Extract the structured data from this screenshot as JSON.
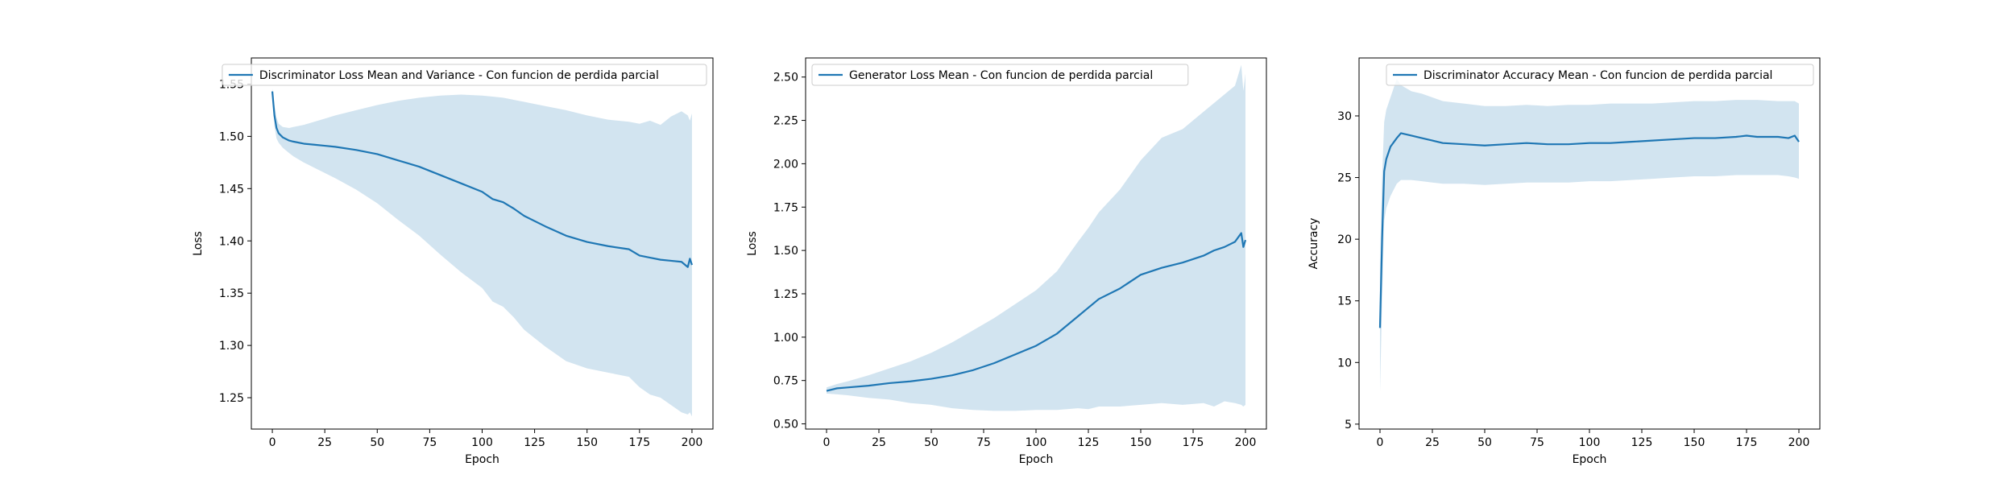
{
  "theme": {
    "line_color": "#1f77b4",
    "band_color": "#1f77b4",
    "band_opacity": 0.2,
    "axes_color": "#000000",
    "background": "#ffffff"
  },
  "chart_data": [
    {
      "type": "area",
      "legend_label": "Discriminator Loss Mean and Variance - Con funcion de perdida parcial",
      "legend_position": "top-right",
      "xlabel": "Epoch",
      "ylabel": "Loss",
      "xlim": [
        -10,
        210
      ],
      "ylim": [
        1.22,
        1.575
      ],
      "xticks": [
        0,
        25,
        50,
        75,
        100,
        125,
        150,
        175,
        200
      ],
      "yticks": [
        1.25,
        1.3,
        1.35,
        1.4,
        1.45,
        1.5,
        1.55
      ],
      "ytick_labels": [
        "1.25",
        "1.30",
        "1.35",
        "1.40",
        "1.45",
        "1.50",
        "1.55"
      ],
      "grid": false,
      "x": [
        0,
        1,
        2,
        3,
        5,
        8,
        10,
        15,
        20,
        25,
        30,
        40,
        50,
        60,
        70,
        80,
        90,
        100,
        105,
        110,
        115,
        120,
        130,
        140,
        150,
        160,
        170,
        175,
        180,
        185,
        190,
        195,
        198,
        199,
        200
      ],
      "mean": [
        1.543,
        1.52,
        1.508,
        1.503,
        1.499,
        1.496,
        1.495,
        1.493,
        1.492,
        1.491,
        1.49,
        1.487,
        1.483,
        1.477,
        1.471,
        1.463,
        1.455,
        1.447,
        1.44,
        1.437,
        1.431,
        1.424,
        1.414,
        1.405,
        1.399,
        1.395,
        1.392,
        1.386,
        1.384,
        1.382,
        1.381,
        1.38,
        1.375,
        1.383,
        1.377
      ],
      "upper": [
        1.546,
        1.53,
        1.518,
        1.512,
        1.509,
        1.508,
        1.509,
        1.511,
        1.514,
        1.517,
        1.52,
        1.525,
        1.53,
        1.534,
        1.537,
        1.539,
        1.54,
        1.539,
        1.538,
        1.537,
        1.535,
        1.533,
        1.529,
        1.525,
        1.52,
        1.516,
        1.514,
        1.512,
        1.515,
        1.511,
        1.519,
        1.524,
        1.52,
        1.515,
        1.522
      ],
      "lower": [
        1.54,
        1.51,
        1.498,
        1.494,
        1.489,
        1.484,
        1.481,
        1.475,
        1.47,
        1.465,
        1.46,
        1.449,
        1.436,
        1.42,
        1.405,
        1.387,
        1.37,
        1.355,
        1.342,
        1.337,
        1.327,
        1.315,
        1.299,
        1.285,
        1.278,
        1.274,
        1.27,
        1.26,
        1.253,
        1.25,
        1.243,
        1.236,
        1.234,
        1.236,
        1.232
      ]
    },
    {
      "type": "area",
      "legend_label": "Generator Loss Mean - Con funcion de perdida parcial",
      "legend_position": "top-left",
      "xlabel": "Epoch",
      "ylabel": "Loss",
      "xlim": [
        -10,
        210
      ],
      "ylim": [
        0.47,
        2.61
      ],
      "xticks": [
        0,
        25,
        50,
        75,
        100,
        125,
        150,
        175,
        200
      ],
      "yticks": [
        0.5,
        0.75,
        1.0,
        1.25,
        1.5,
        1.75,
        2.0,
        2.25,
        2.5
      ],
      "ytick_labels": [
        "0.50",
        "0.75",
        "1.00",
        "1.25",
        "1.50",
        "1.75",
        "2.00",
        "2.25",
        "2.50"
      ],
      "grid": false,
      "x": [
        0,
        5,
        10,
        20,
        30,
        40,
        50,
        60,
        70,
        80,
        90,
        100,
        110,
        120,
        125,
        130,
        140,
        150,
        160,
        170,
        180,
        185,
        190,
        195,
        198,
        199,
        200
      ],
      "mean": [
        0.69,
        0.705,
        0.71,
        0.72,
        0.735,
        0.745,
        0.76,
        0.78,
        0.81,
        0.85,
        0.9,
        0.95,
        1.02,
        1.12,
        1.17,
        1.22,
        1.28,
        1.36,
        1.4,
        1.43,
        1.47,
        1.5,
        1.52,
        1.55,
        1.6,
        1.52,
        1.56
      ],
      "upper": [
        0.71,
        0.73,
        0.745,
        0.78,
        0.82,
        0.86,
        0.91,
        0.97,
        1.04,
        1.11,
        1.19,
        1.27,
        1.38,
        1.55,
        1.63,
        1.72,
        1.85,
        2.02,
        2.15,
        2.2,
        2.3,
        2.35,
        2.4,
        2.45,
        2.57,
        2.42,
        2.52
      ],
      "lower": [
        0.675,
        0.67,
        0.665,
        0.65,
        0.64,
        0.62,
        0.61,
        0.59,
        0.58,
        0.575,
        0.575,
        0.58,
        0.58,
        0.59,
        0.585,
        0.6,
        0.6,
        0.61,
        0.62,
        0.61,
        0.62,
        0.6,
        0.63,
        0.62,
        0.61,
        0.6,
        0.61
      ]
    },
    {
      "type": "area",
      "legend_label": "Discriminator Accuracy Mean - Con funcion de perdida parcial",
      "legend_position": "top-right",
      "xlabel": "Epoch",
      "ylabel": "Accuracy",
      "xlim": [
        -10,
        210
      ],
      "ylim": [
        4.6,
        34.7
      ],
      "xticks": [
        0,
        25,
        50,
        75,
        100,
        125,
        150,
        175,
        200
      ],
      "yticks": [
        5,
        10,
        15,
        20,
        25,
        30
      ],
      "ytick_labels": [
        "5",
        "10",
        "15",
        "20",
        "25",
        "30"
      ],
      "grid": false,
      "x": [
        0,
        1,
        2,
        3,
        5,
        8,
        10,
        15,
        20,
        25,
        30,
        40,
        50,
        60,
        70,
        80,
        90,
        100,
        110,
        120,
        130,
        140,
        150,
        160,
        170,
        175,
        180,
        190,
        195,
        198,
        200
      ],
      "mean": [
        12.8,
        20.0,
        25.5,
        26.5,
        27.5,
        28.2,
        28.6,
        28.4,
        28.2,
        28.0,
        27.8,
        27.7,
        27.6,
        27.7,
        27.8,
        27.7,
        27.7,
        27.8,
        27.8,
        27.9,
        28.0,
        28.1,
        28.2,
        28.2,
        28.3,
        28.4,
        28.3,
        28.3,
        28.2,
        28.4,
        27.9
      ],
      "upper": [
        18.0,
        25.0,
        29.5,
        30.5,
        31.5,
        33.0,
        32.5,
        32.0,
        31.8,
        31.5,
        31.2,
        31.0,
        30.8,
        30.8,
        30.9,
        30.8,
        30.9,
        30.9,
        31.0,
        31.0,
        31.0,
        31.1,
        31.2,
        31.2,
        31.3,
        31.3,
        31.3,
        31.2,
        31.2,
        31.2,
        31.0
      ],
      "lower": [
        7.6,
        15.0,
        21.5,
        22.5,
        23.5,
        24.5,
        24.8,
        24.8,
        24.7,
        24.6,
        24.5,
        24.5,
        24.4,
        24.5,
        24.6,
        24.6,
        24.6,
        24.7,
        24.7,
        24.8,
        24.9,
        25.0,
        25.1,
        25.1,
        25.2,
        25.2,
        25.2,
        25.2,
        25.1,
        25.0,
        24.9
      ]
    }
  ]
}
